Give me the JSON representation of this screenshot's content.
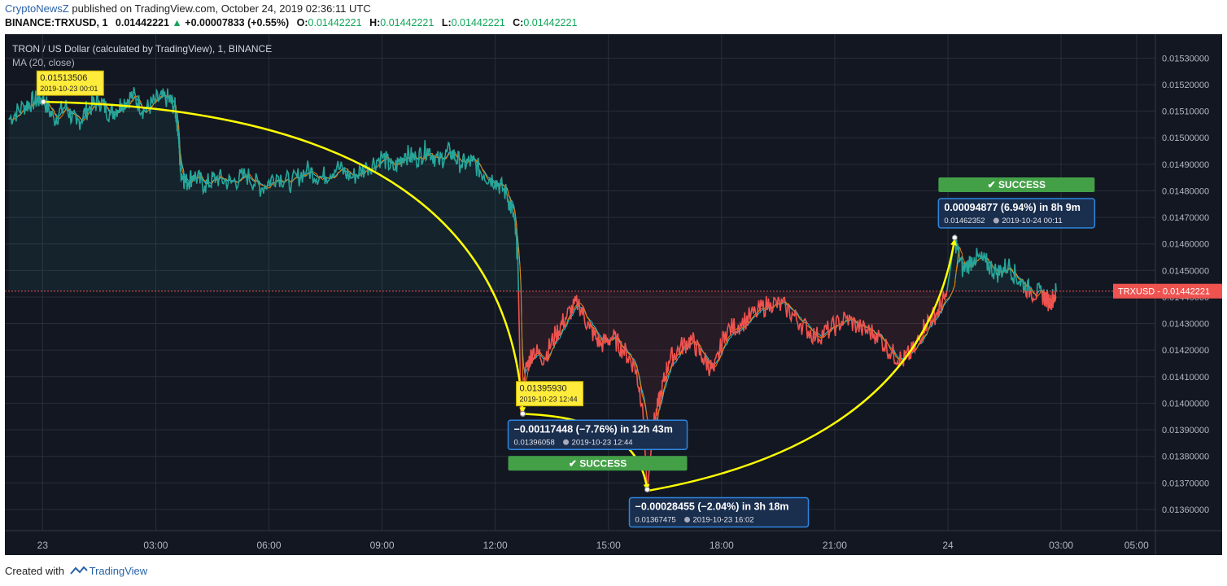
{
  "header": {
    "author": "CryptoNewsZ",
    "published": "published on TradingView.com, October 24, 2019 02:36:11 UTC",
    "symbol": "BINANCE:TRXUSD, 1",
    "last_price": "0.01442221",
    "change": "+0.00007833 (+0.55%)",
    "o_label": "O:",
    "o": "0.01442221",
    "h_label": "H:",
    "h": "0.01442221",
    "l_label": "L:",
    "l": "0.01442221",
    "c_label": "C:",
    "c": "0.01442221"
  },
  "footer": {
    "created_with": "Created with",
    "brand": "TradingView"
  },
  "chart_data": {
    "type": "line",
    "title": "TRON / US Dollar (calculated by TradingView), 1, BINANCE",
    "indicator": "MA (20, close)",
    "time_axis": {
      "range_hours": [
        -1.0,
        29.5
      ],
      "ticks": [
        {
          "t": 0,
          "label": "23"
        },
        {
          "t": 3,
          "label": "03:00"
        },
        {
          "t": 6,
          "label": "06:00"
        },
        {
          "t": 9,
          "label": "09:00"
        },
        {
          "t": 12,
          "label": "12:00"
        },
        {
          "t": 15,
          "label": "15:00"
        },
        {
          "t": 18,
          "label": "18:00"
        },
        {
          "t": 21,
          "label": "21:00"
        },
        {
          "t": 24,
          "label": "24"
        },
        {
          "t": 27,
          "label": "03:00"
        },
        {
          "t": 29,
          "label": "05:00"
        }
      ]
    },
    "price_axis": {
      "ylim": [
        0.01352,
        0.01539
      ],
      "ticks": [
        "0.01360000",
        "0.01370000",
        "0.01380000",
        "0.01390000",
        "0.01400000",
        "0.01410000",
        "0.01420000",
        "0.01430000",
        "0.01440000",
        "0.01450000",
        "0.01460000",
        "0.01470000",
        "0.01480000",
        "0.01490000",
        "0.01500000",
        "0.01510000",
        "0.01520000",
        "0.01530000"
      ]
    },
    "colors": {
      "up": "#26a69a",
      "down": "#ef5350",
      "ma": "#f57c00",
      "avg": "#26c6da",
      "arrow": "#ffff00",
      "success": "#43a047",
      "box": "#1a2e4e",
      "box_border": "#2e86de",
      "price_line": "#ef5350",
      "background": "#131722",
      "grid": "#2a2e39"
    },
    "series": [
      {
        "name": "TRXUSD",
        "points": [
          [
            -0.9,
            0.01507
          ],
          [
            -0.5,
            0.01512
          ],
          [
            -0.2,
            0.01514
          ],
          [
            0.0,
            0.01515
          ],
          [
            0.3,
            0.01507
          ],
          [
            0.6,
            0.01512
          ],
          [
            0.9,
            0.01505
          ],
          [
            1.2,
            0.01511
          ],
          [
            1.5,
            0.01514
          ],
          [
            1.8,
            0.01509
          ],
          [
            2.1,
            0.01513
          ],
          [
            2.4,
            0.01516
          ],
          [
            2.7,
            0.0151
          ],
          [
            3.0,
            0.01514
          ],
          [
            3.3,
            0.01515
          ],
          [
            3.5,
            0.01512
          ],
          [
            3.6,
            0.01503
          ],
          [
            3.65,
            0.01488
          ],
          [
            3.8,
            0.01483
          ],
          [
            4.0,
            0.01486
          ],
          [
            4.3,
            0.01482
          ],
          [
            4.6,
            0.01485
          ],
          [
            5.0,
            0.01483
          ],
          [
            5.4,
            0.01486
          ],
          [
            5.8,
            0.01481
          ],
          [
            6.2,
            0.01486
          ],
          [
            6.6,
            0.01483
          ],
          [
            7.0,
            0.01488
          ],
          [
            7.4,
            0.01485
          ],
          [
            7.8,
            0.01489
          ],
          [
            8.2,
            0.01485
          ],
          [
            8.6,
            0.01489
          ],
          [
            9.0,
            0.01493
          ],
          [
            9.3,
            0.01488
          ],
          [
            9.6,
            0.01494
          ],
          [
            9.9,
            0.01492
          ],
          [
            10.2,
            0.01496
          ],
          [
            10.5,
            0.01491
          ],
          [
            10.8,
            0.01495
          ],
          [
            11.1,
            0.0149
          ],
          [
            11.4,
            0.01491
          ],
          [
            11.7,
            0.01486
          ],
          [
            12.0,
            0.01484
          ],
          [
            12.3,
            0.01479
          ],
          [
            12.5,
            0.0147
          ],
          [
            12.6,
            0.01454
          ],
          [
            12.68,
            0.01396
          ],
          [
            12.8,
            0.01412
          ],
          [
            13.0,
            0.0142
          ],
          [
            13.3,
            0.01417
          ],
          [
            13.6,
            0.01426
          ],
          [
            13.9,
            0.01433
          ],
          [
            14.2,
            0.01438
          ],
          [
            14.5,
            0.01428
          ],
          [
            14.8,
            0.01422
          ],
          [
            15.1,
            0.01425
          ],
          [
            15.4,
            0.0142
          ],
          [
            15.7,
            0.01414
          ],
          [
            15.9,
            0.014
          ],
          [
            16.03,
            0.01367
          ],
          [
            16.2,
            0.01392
          ],
          [
            16.4,
            0.01404
          ],
          [
            16.6,
            0.01416
          ],
          [
            16.9,
            0.01421
          ],
          [
            17.2,
            0.01424
          ],
          [
            17.5,
            0.01417
          ],
          [
            17.8,
            0.01412
          ],
          [
            18.1,
            0.01427
          ],
          [
            18.5,
            0.0143
          ],
          [
            18.9,
            0.01434
          ],
          [
            19.3,
            0.01438
          ],
          [
            19.7,
            0.01436
          ],
          [
            20.1,
            0.0143
          ],
          [
            20.5,
            0.01425
          ],
          [
            20.9,
            0.01428
          ],
          [
            21.3,
            0.01432
          ],
          [
            21.7,
            0.01428
          ],
          [
            22.1,
            0.01426
          ],
          [
            22.5,
            0.01419
          ],
          [
            22.8,
            0.01416
          ],
          [
            23.1,
            0.0142
          ],
          [
            23.4,
            0.0143
          ],
          [
            23.7,
            0.01434
          ],
          [
            23.95,
            0.0144
          ],
          [
            24.18,
            0.01462
          ],
          [
            24.4,
            0.0145
          ],
          [
            24.7,
            0.01455
          ],
          [
            25.0,
            0.01453
          ],
          [
            25.3,
            0.01449
          ],
          [
            25.6,
            0.01452
          ],
          [
            25.9,
            0.01446
          ],
          [
            26.2,
            0.01442
          ],
          [
            26.5,
            0.01441
          ],
          [
            26.7,
            0.01438
          ],
          [
            26.87,
            0.01442
          ]
        ]
      }
    ],
    "current_price": {
      "label": "TRXUSD",
      "value": "0.01442221",
      "y": 0.01442221
    },
    "annotations": [
      {
        "kind": "price_label",
        "t": 0.02,
        "y": 0.01513506,
        "value": "0.01513506",
        "time": "2019-10-23  00:01"
      },
      {
        "kind": "price_label",
        "t": 12.73,
        "y": 0.0139593,
        "value": "0.01395930",
        "time": "2019-10-23  12:44"
      },
      {
        "kind": "measure",
        "t": 12.73,
        "y": 0.01396058,
        "main": "−0.00117448 (−7.76%) in 12h 43m",
        "sub_price": "0.01396058",
        "sub_time": "2019-10-23  12:44",
        "status": "✔ SUCCESS"
      },
      {
        "kind": "measure",
        "t": 16.03,
        "y": 0.01367475,
        "main": "−0.00028455 (−2.04%) in 3h 18m",
        "sub_price": "0.01367475",
        "sub_time": "2019-10-23  16:02"
      },
      {
        "kind": "measure",
        "t": 24.18,
        "y": 0.01462352,
        "main": "0.00094877 (6.94%) in 8h 9m",
        "sub_price": "0.01462352",
        "sub_time": "2019-10-24  00:11",
        "status": "✔ SUCCESS"
      }
    ],
    "arrows": [
      {
        "from": [
          0.02,
          0.01513506
        ],
        "to": [
          12.73,
          0.01396
        ]
      },
      {
        "from": [
          12.73,
          0.01396
        ],
        "to": [
          16.03,
          0.01367
        ]
      },
      {
        "from": [
          16.03,
          0.01367
        ],
        "to": [
          24.18,
          0.01462
        ]
      }
    ]
  }
}
